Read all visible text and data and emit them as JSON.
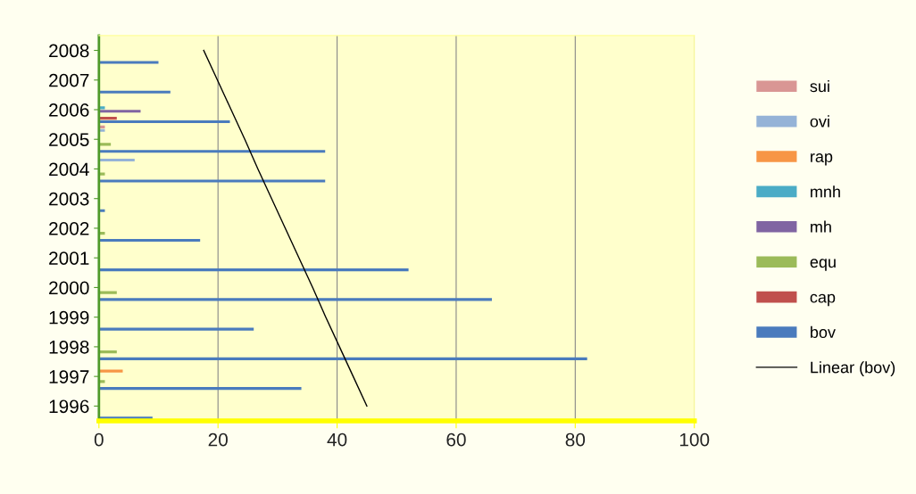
{
  "chart_data": {
    "type": "bar",
    "orientation": "horizontal",
    "categories": [
      "2008",
      "2007",
      "2006",
      "2005",
      "2004",
      "2003",
      "2002",
      "2001",
      "2000",
      "1999",
      "1998",
      "1997",
      "1996"
    ],
    "series": [
      {
        "name": "bov",
        "color": "#4a7bbd",
        "values": [
          10,
          12,
          22,
          38,
          38,
          1,
          17,
          52,
          66,
          26,
          82,
          34,
          9
        ]
      },
      {
        "name": "cap",
        "color": "#c0504d",
        "values": [
          0,
          0,
          3,
          0,
          0,
          0,
          0,
          0,
          0,
          0,
          0,
          0,
          0
        ]
      },
      {
        "name": "equ",
        "color": "#9bbb59",
        "values": [
          0,
          0,
          0,
          2,
          1,
          0,
          1,
          0,
          3,
          0,
          3,
          1,
          0
        ]
      },
      {
        "name": "mh",
        "color": "#8064a2",
        "values": [
          0,
          0,
          7,
          0,
          0,
          0,
          0,
          0,
          0,
          0,
          0,
          0,
          0
        ]
      },
      {
        "name": "mnh",
        "color": "#4bacc6",
        "values": [
          0,
          0,
          1,
          0,
          0,
          0,
          0,
          0,
          0,
          0,
          0,
          0,
          0
        ]
      },
      {
        "name": "rap",
        "color": "#f79646",
        "values": [
          0,
          0,
          0,
          0,
          0,
          0,
          0,
          0,
          0,
          0,
          0,
          4,
          0
        ]
      },
      {
        "name": "ovi",
        "color": "#95b3d7",
        "values": [
          0,
          0,
          0,
          1,
          6,
          0,
          0,
          0,
          0,
          0,
          0,
          0,
          0
        ]
      },
      {
        "name": "sui",
        "color": "#d99694",
        "values": [
          0,
          0,
          0,
          1,
          0,
          0,
          0,
          0,
          0,
          0,
          0,
          0,
          0
        ]
      },
      {
        "name": "Linear (bov)",
        "type": "line",
        "color": "#000000",
        "values": [
          17.6,
          19.9,
          22.2,
          24.5,
          26.7,
          29.0,
          31.3,
          33.6,
          35.9,
          38.1,
          40.4,
          42.7,
          45.0
        ]
      }
    ],
    "xlim": [
      0,
      100
    ],
    "xticks": [
      0,
      20,
      40,
      60,
      80,
      100
    ],
    "grid": "x",
    "legend": "right"
  }
}
